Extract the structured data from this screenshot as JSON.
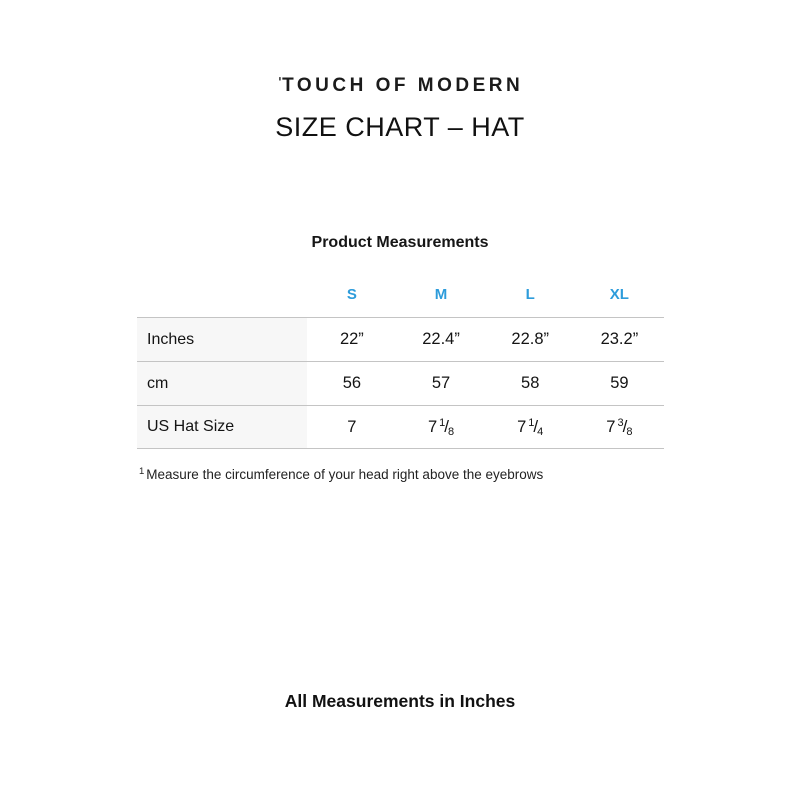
{
  "logo": {
    "mark": "ˈ",
    "text": "TOUCH OF MODERN"
  },
  "title": "SIZE CHART – HAT",
  "section": {
    "title": "Product Measurements"
  },
  "size_table": {
    "columns": [
      "S",
      "M",
      "L",
      "XL"
    ],
    "rows": [
      {
        "label": "Inches",
        "values": [
          "22”",
          "22.4”",
          "22.8”",
          "23.2”"
        ]
      },
      {
        "label": "cm",
        "values": [
          "56",
          "57",
          "58",
          "59"
        ]
      },
      {
        "label": "US Hat Size",
        "values": [
          {
            "whole": "7"
          },
          {
            "whole": "7",
            "num": "1",
            "slash": "/",
            "den": "8"
          },
          {
            "whole": "7",
            "num": "1",
            "slash": "/",
            "den": "4"
          },
          {
            "whole": "7",
            "num": "3",
            "slash": "/",
            "den": "8"
          }
        ]
      }
    ]
  },
  "footnote": {
    "sup": "1",
    "text": "Measure the circumference of your head right above the eyebrows"
  },
  "footer": {
    "text": "All Measurements in Inches"
  },
  "colors": {
    "accent_blue": "#2D9CDB",
    "label_bg": "#F7F7F7",
    "line": "#C4C4C4",
    "text": "#1C1C1C"
  }
}
